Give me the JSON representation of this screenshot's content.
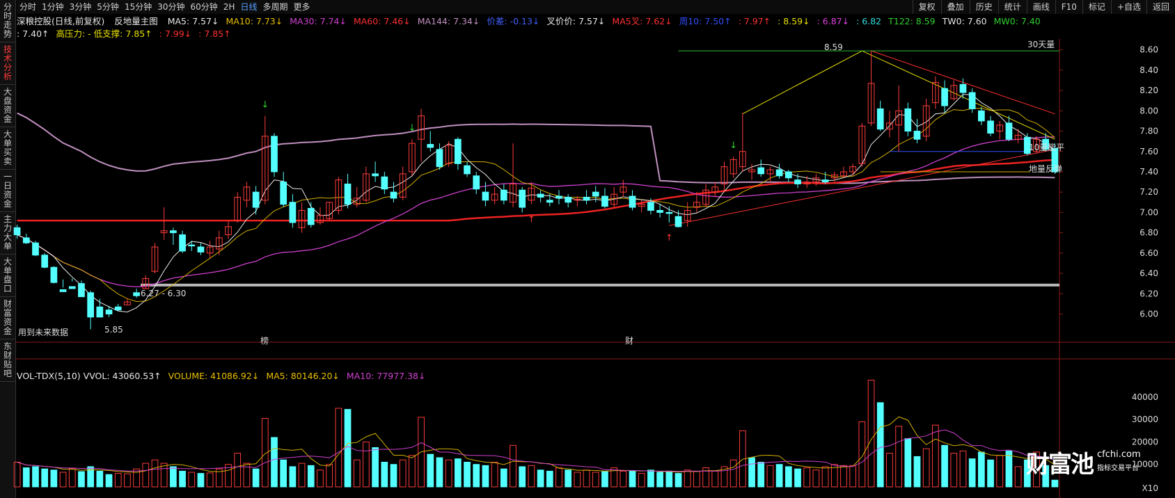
{
  "toolbar": {
    "periods": [
      "分时",
      "1分钟",
      "3分钟",
      "5分钟",
      "15分钟",
      "30分钟",
      "60分钟",
      "2H",
      "日线",
      "多周期",
      "更多"
    ],
    "active_period": "日线",
    "right_buttons": [
      "复权",
      "叠加",
      "历史",
      "统计",
      "画线",
      "F10",
      "标记",
      "+自选",
      "返回"
    ]
  },
  "side_tabs": [
    "分时走势",
    "技术分析",
    "大盘资金",
    "大单买卖",
    "一日资金",
    "主力大单",
    "大单盘口",
    "财富资金",
    "东财贴吧"
  ],
  "active_side_tab": "技术分析",
  "legend": {
    "stock": "深粮控股(日线,前复权)",
    "indicator": "反地量主图",
    "items1": [
      {
        "text": "MA5: 7.57↓",
        "color": "#e8e8e8"
      },
      {
        "text": "MA10: 7.73↓",
        "color": "#e8c000"
      },
      {
        "text": "MA30: 7.74↓",
        "color": "#d040d0"
      },
      {
        "text": "MA60: 7.46↓",
        "color": "#ff3030"
      },
      {
        "text": "MA144: 7.34↓",
        "color": "#c090c0"
      },
      {
        "text": "价差: -0.13↓",
        "color": "#4060ff"
      },
      {
        "text": "叉价价: 7.57↓",
        "color": "#e8e8e8"
      },
      {
        "text": "MA5叉: 7.62↓",
        "color": "#ff3030"
      },
      {
        "text": "周10: 7.50↑",
        "color": "#3050ff"
      },
      {
        "text": ": 7.97↑",
        "color": "#ff3030"
      },
      {
        "text": ": 8.59↓",
        "color": "#e8e000"
      },
      {
        "text": ": 6.87↓",
        "color": "#e040e0"
      },
      {
        "text": ": 6.82",
        "color": "#30e0e0"
      },
      {
        "text": "T122: 8.59",
        "color": "#30d030"
      },
      {
        "text": "TW0: 7.60",
        "color": "#e8e8e8"
      },
      {
        "text": "MW0: 7.40",
        "color": "#30d030"
      }
    ],
    "items2": [
      {
        "text": ": 7.40↑",
        "color": "#e8e8e8"
      },
      {
        "text": "高压力: - 低支撑: 7.85↑",
        "color": "#e8e000"
      },
      {
        "text": ": 7.99↓",
        "color": "#ff3030"
      },
      {
        "text": ": 7.85↑",
        "color": "#ff3030"
      }
    ]
  },
  "volume_legend": [
    {
      "text": "VOL-TDX(5,10)  VVOL: 43060.53↑",
      "color": "#e8e8e8"
    },
    {
      "text": "VOLUME: 41086.92↓",
      "color": "#e8c000"
    },
    {
      "text": "MA5: 80146.20↓",
      "color": "#e8c000"
    },
    {
      "text": "MA10: 77977.38↓",
      "color": "#d040d0"
    }
  ],
  "chart_data": {
    "type": "candlestick",
    "price_ylim": [
      5.75,
      8.68
    ],
    "price_ticks": [
      "8.60",
      "8.40",
      "8.20",
      "8.00",
      "7.80",
      "7.60",
      "7.40",
      "7.20",
      "7.00",
      "6.80",
      "6.60",
      "6.40",
      "6.20",
      "6.00"
    ],
    "volume_ylim": [
      0,
      48000
    ],
    "volume_ticks": [
      "40000",
      "30000",
      "20000",
      "10000",
      "X10"
    ],
    "candles": [
      [
        6.85,
        6.88,
        6.78,
        6.74
      ],
      [
        6.75,
        6.79,
        6.7,
        6.69
      ],
      [
        6.7,
        6.72,
        6.58,
        6.57
      ],
      [
        6.58,
        6.6,
        6.46,
        6.45
      ],
      [
        6.46,
        6.47,
        6.31,
        6.3
      ],
      [
        6.24,
        6.34,
        6.22,
        6.26
      ],
      [
        6.27,
        6.35,
        6.25,
        6.32
      ],
      [
        6.3,
        6.33,
        6.17,
        6.19
      ],
      [
        6.21,
        6.23,
        5.97,
        5.85
      ],
      [
        6.07,
        6.15,
        5.97,
        6.04
      ],
      [
        6.04,
        6.08,
        6.0,
        5.97
      ],
      [
        6.07,
        6.1,
        6.04,
        6.03
      ],
      [
        6.09,
        6.15,
        6.12,
        6.09
      ],
      [
        6.21,
        6.25,
        6.18,
        6.16
      ],
      [
        6.25,
        6.38,
        6.35,
        6.25
      ],
      [
        6.42,
        6.7,
        6.66,
        6.4
      ],
      [
        6.8,
        7.05,
        6.82,
        6.73
      ],
      [
        6.82,
        6.85,
        6.8,
        6.68
      ],
      [
        6.78,
        6.82,
        6.62,
        6.6
      ],
      [
        6.68,
        6.72,
        6.67,
        6.62
      ],
      [
        6.66,
        6.7,
        6.61,
        6.58
      ],
      [
        6.6,
        6.72,
        6.66,
        6.55
      ],
      [
        6.64,
        6.82,
        6.75,
        6.58
      ],
      [
        6.78,
        6.92,
        6.86,
        6.74
      ],
      [
        6.92,
        7.2,
        7.15,
        6.9
      ],
      [
        7.12,
        7.3,
        7.25,
        7.05
      ],
      [
        7.2,
        7.26,
        7.05,
        6.98
      ],
      [
        7.12,
        7.95,
        7.75,
        7.08
      ],
      [
        7.75,
        7.78,
        7.4,
        7.35
      ],
      [
        7.3,
        7.4,
        7.08,
        7.05
      ],
      [
        7.1,
        7.18,
        6.9,
        6.85
      ],
      [
        6.85,
        7.1,
        7.02,
        6.8
      ],
      [
        7.04,
        7.1,
        6.88,
        6.85
      ],
      [
        6.9,
        7.05,
        6.97,
        6.88
      ],
      [
        6.94,
        7.1,
        7.1,
        6.92
      ],
      [
        7.02,
        7.35,
        7.32,
        6.98
      ],
      [
        7.28,
        7.38,
        7.08,
        7.04
      ],
      [
        7.08,
        7.25,
        7.14,
        7.05
      ],
      [
        7.12,
        7.45,
        7.38,
        7.1
      ],
      [
        7.38,
        7.5,
        7.36,
        7.3
      ],
      [
        7.35,
        7.4,
        7.23,
        7.18
      ],
      [
        7.2,
        7.3,
        7.14,
        7.1
      ],
      [
        7.15,
        7.45,
        7.38,
        7.12
      ],
      [
        7.4,
        7.72,
        7.68,
        7.36
      ],
      [
        7.72,
        8.02,
        7.95,
        7.5
      ],
      [
        7.67,
        7.8,
        7.64,
        7.6
      ],
      [
        7.62,
        7.68,
        7.45,
        7.42
      ],
      [
        7.48,
        7.7,
        7.66,
        7.45
      ],
      [
        7.72,
        7.74,
        7.48,
        7.42
      ],
      [
        7.46,
        7.5,
        7.38,
        7.35
      ],
      [
        7.36,
        7.4,
        7.23,
        7.18
      ],
      [
        7.2,
        7.3,
        7.12,
        7.06
      ],
      [
        7.12,
        7.25,
        7.18,
        7.08
      ],
      [
        7.22,
        7.28,
        7.12,
        7.08
      ],
      [
        7.1,
        7.68,
        7.28,
        7.05
      ],
      [
        7.22,
        7.25,
        7.05,
        7.0
      ],
      [
        7.12,
        7.3,
        7.24,
        7.08
      ],
      [
        7.18,
        7.22,
        7.15,
        7.1
      ],
      [
        7.12,
        7.18,
        7.1,
        7.06
      ],
      [
        7.16,
        7.22,
        7.14,
        7.08
      ],
      [
        7.15,
        7.18,
        7.1,
        7.05
      ],
      [
        7.12,
        7.16,
        7.13,
        7.06
      ],
      [
        7.15,
        7.22,
        7.12,
        7.08
      ],
      [
        7.2,
        7.26,
        7.16,
        7.1
      ],
      [
        7.16,
        7.24,
        7.06,
        7.04
      ],
      [
        7.08,
        7.25,
        7.18,
        7.05
      ],
      [
        7.2,
        7.32,
        7.25,
        7.15
      ],
      [
        7.16,
        7.22,
        7.05,
        7.02
      ],
      [
        7.06,
        7.12,
        7.08,
        7.0
      ],
      [
        7.1,
        7.14,
        7.02,
        6.98
      ],
      [
        7.02,
        7.08,
        7.0,
        6.95
      ],
      [
        7.0,
        7.06,
        6.99,
        6.9
      ],
      [
        6.96,
        7.02,
        6.86,
        6.85
      ],
      [
        6.92,
        7.1,
        7.02,
        6.86
      ],
      [
        7.05,
        7.2,
        7.1,
        7.0
      ],
      [
        7.08,
        7.28,
        7.22,
        7.05
      ],
      [
        7.2,
        7.3,
        7.25,
        7.15
      ],
      [
        7.28,
        7.5,
        7.45,
        7.2
      ],
      [
        7.38,
        7.55,
        7.52,
        7.34
      ],
      [
        7.45,
        7.98,
        7.6,
        7.4
      ],
      [
        7.4,
        7.48,
        7.42,
        7.32
      ],
      [
        7.44,
        7.52,
        7.38,
        7.35
      ],
      [
        7.38,
        7.45,
        7.42,
        7.3
      ],
      [
        7.42,
        7.48,
        7.36,
        7.33
      ],
      [
        7.4,
        7.42,
        7.34,
        7.3
      ],
      [
        7.32,
        7.38,
        7.28,
        7.24
      ],
      [
        7.28,
        7.36,
        7.3,
        7.24
      ],
      [
        7.3,
        7.38,
        7.34,
        7.26
      ],
      [
        7.32,
        7.4,
        7.3,
        7.28
      ],
      [
        7.34,
        7.4,
        7.37,
        7.3
      ],
      [
        7.36,
        7.45,
        7.4,
        7.34
      ],
      [
        7.4,
        7.48,
        7.45,
        7.36
      ],
      [
        7.48,
        7.88,
        7.85,
        7.45
      ],
      [
        7.88,
        8.59,
        8.27,
        7.85
      ],
      [
        8.02,
        8.1,
        7.82,
        7.8
      ],
      [
        7.82,
        8.0,
        7.88,
        7.74
      ],
      [
        7.86,
        8.25,
        8.0,
        7.6
      ],
      [
        8.02,
        8.08,
        7.8,
        7.75
      ],
      [
        7.8,
        7.92,
        7.72,
        7.68
      ],
      [
        7.75,
        8.12,
        8.05,
        7.7
      ],
      [
        8.08,
        8.34,
        8.28,
        8.02
      ],
      [
        8.22,
        8.3,
        8.05,
        7.98
      ],
      [
        8.12,
        8.3,
        8.25,
        8.1
      ],
      [
        8.26,
        8.32,
        8.18,
        8.12
      ],
      [
        8.18,
        8.22,
        8.02,
        7.98
      ],
      [
        8.0,
        8.04,
        7.9,
        7.86
      ],
      [
        7.9,
        7.95,
        7.78,
        7.75
      ],
      [
        7.8,
        7.9,
        7.86,
        7.72
      ],
      [
        7.88,
        7.95,
        7.72,
        7.7
      ],
      [
        7.72,
        7.82,
        7.76,
        7.68
      ],
      [
        7.74,
        7.78,
        7.58,
        7.56
      ],
      [
        7.6,
        7.75,
        7.72,
        7.58
      ],
      [
        7.72,
        7.78,
        7.62,
        7.6
      ],
      [
        7.63,
        7.68,
        7.4,
        7.38
      ]
    ],
    "volume": [
      [
        11000,
        1
      ],
      [
        8500,
        0
      ],
      [
        9000,
        0
      ],
      [
        8000,
        0
      ],
      [
        7500,
        0
      ],
      [
        6500,
        1
      ],
      [
        8200,
        1
      ],
      [
        6800,
        0
      ],
      [
        9000,
        0
      ],
      [
        7000,
        0
      ],
      [
        5500,
        0
      ],
      [
        6000,
        1
      ],
      [
        5800,
        1
      ],
      [
        8000,
        1
      ],
      [
        10500,
        1
      ],
      [
        12000,
        1
      ],
      [
        10500,
        1
      ],
      [
        9000,
        0
      ],
      [
        7000,
        0
      ],
      [
        6500,
        1
      ],
      [
        6000,
        0
      ],
      [
        6200,
        1
      ],
      [
        8000,
        1
      ],
      [
        10000,
        1
      ],
      [
        15000,
        1
      ],
      [
        10500,
        1
      ],
      [
        8000,
        0
      ],
      [
        30500,
        1
      ],
      [
        22000,
        0
      ],
      [
        12000,
        0
      ],
      [
        9000,
        0
      ],
      [
        10500,
        1
      ],
      [
        9500,
        0
      ],
      [
        7500,
        1
      ],
      [
        10000,
        1
      ],
      [
        35000,
        1
      ],
      [
        34500,
        0
      ],
      [
        12000,
        1
      ],
      [
        20000,
        1
      ],
      [
        17500,
        0
      ],
      [
        11000,
        0
      ],
      [
        10000,
        0
      ],
      [
        12000,
        1
      ],
      [
        14000,
        1
      ],
      [
        31000,
        1
      ],
      [
        14500,
        0
      ],
      [
        13000,
        0
      ],
      [
        12000,
        1
      ],
      [
        12500,
        0
      ],
      [
        11000,
        0
      ],
      [
        10000,
        0
      ],
      [
        9500,
        0
      ],
      [
        11000,
        1
      ],
      [
        8000,
        0
      ],
      [
        18500,
        1
      ],
      [
        9000,
        0
      ],
      [
        9500,
        1
      ],
      [
        7500,
        0
      ],
      [
        7000,
        0
      ],
      [
        8500,
        1
      ],
      [
        7500,
        0
      ],
      [
        6500,
        1
      ],
      [
        7500,
        1
      ],
      [
        6500,
        1
      ],
      [
        7000,
        0
      ],
      [
        8500,
        1
      ],
      [
        7000,
        1
      ],
      [
        7000,
        0
      ],
      [
        6000,
        1
      ],
      [
        7500,
        0
      ],
      [
        6500,
        0
      ],
      [
        7000,
        0
      ],
      [
        6000,
        0
      ],
      [
        7500,
        1
      ],
      [
        7000,
        1
      ],
      [
        8500,
        1
      ],
      [
        7000,
        1
      ],
      [
        9000,
        1
      ],
      [
        12000,
        1
      ],
      [
        25000,
        1
      ],
      [
        13000,
        0
      ],
      [
        11000,
        0
      ],
      [
        9500,
        1
      ],
      [
        10000,
        0
      ],
      [
        9000,
        0
      ],
      [
        8000,
        0
      ],
      [
        8500,
        1
      ],
      [
        7500,
        1
      ],
      [
        9000,
        1
      ],
      [
        10000,
        1
      ],
      [
        9500,
        1
      ],
      [
        9500,
        1
      ],
      [
        29000,
        1
      ],
      [
        47500,
        1
      ],
      [
        37500,
        0
      ],
      [
        15000,
        1
      ],
      [
        27000,
        1
      ],
      [
        21500,
        0
      ],
      [
        13500,
        0
      ],
      [
        17000,
        1
      ],
      [
        27500,
        1
      ],
      [
        18500,
        0
      ],
      [
        15000,
        1
      ],
      [
        16000,
        1
      ],
      [
        12500,
        0
      ],
      [
        15500,
        0
      ],
      [
        12000,
        0
      ],
      [
        14000,
        1
      ],
      [
        16000,
        0
      ],
      [
        9000,
        1
      ],
      [
        12000,
        0
      ],
      [
        15500,
        1
      ],
      [
        9500,
        0
      ],
      [
        3000,
        0
      ]
    ],
    "annotations": {
      "high_label": "8.59",
      "low_label": "5.85",
      "range_label": "6.27 - 6.30",
      "right_label_1": "10量能平",
      "right_label_2": "地量反弹",
      "top_right_label": "30天量",
      "future_data": "用到未来数据",
      "marker_1": "榜",
      "marker_2": "财"
    }
  },
  "watermark": {
    "brand": "财富池",
    "domain": "cfchi.com",
    "slogan": "指标交易平台"
  }
}
